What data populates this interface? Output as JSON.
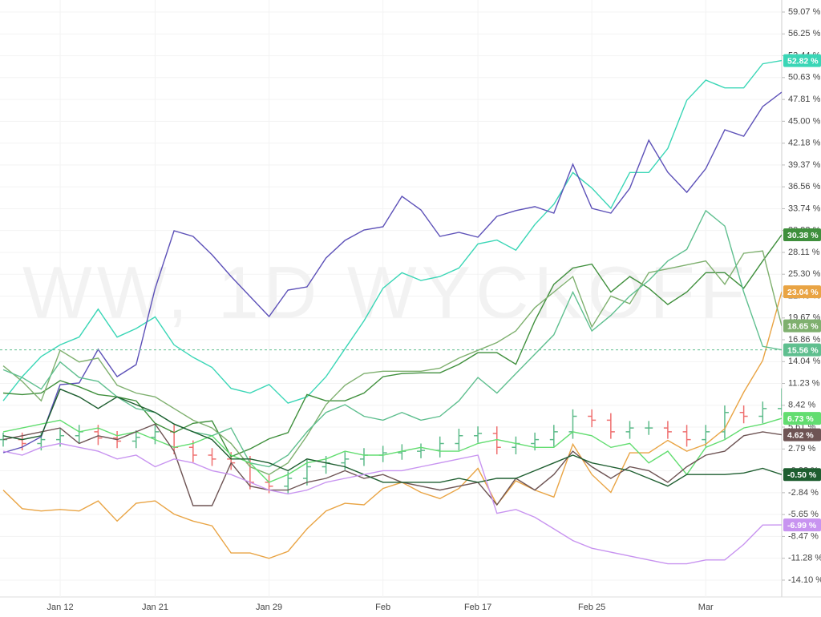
{
  "chart_data": {
    "type": "line",
    "watermark": "WW, 1D WYCKOFF",
    "categories": [
      null,
      null,
      null,
      "Jan 12",
      null,
      null,
      null,
      null,
      "Jan 21",
      null,
      null,
      null,
      null,
      null,
      "Jan 29",
      null,
      null,
      null,
      null,
      null,
      "Feb",
      null,
      null,
      null,
      null,
      "Feb 17",
      null,
      null,
      null,
      null,
      null,
      "Feb 25",
      null,
      null,
      null,
      null,
      null,
      "Mar",
      null,
      null,
      null,
      null
    ],
    "ylim": [
      -16.27,
      60.62
    ],
    "yticks": [
      {
        "value": 59.07,
        "label": "59.07 %"
      },
      {
        "value": 56.25,
        "label": "56.25 %"
      },
      {
        "value": 53.44,
        "label": "53.44 %"
      },
      {
        "value": 50.63,
        "label": "50.63 %"
      },
      {
        "value": 47.81,
        "label": "47.81 %"
      },
      {
        "value": 45.0,
        "label": "45.00 %"
      },
      {
        "value": 42.18,
        "label": "42.18 %"
      },
      {
        "value": 39.37,
        "label": "39.37 %"
      },
      {
        "value": 36.56,
        "label": "36.56 %"
      },
      {
        "value": 33.74,
        "label": "33.74 %"
      },
      {
        "value": 30.93,
        "label": "30.93 %"
      },
      {
        "value": 28.11,
        "label": "28.11 %"
      },
      {
        "value": 25.3,
        "label": "25.30 %"
      },
      {
        "value": 22.49,
        "label": "22.49 %"
      },
      {
        "value": 19.67,
        "label": "19.67 %"
      },
      {
        "value": 16.86,
        "label": "16.86 %"
      },
      {
        "value": 14.04,
        "label": "14.04 %"
      },
      {
        "value": 11.23,
        "label": "11.23 %"
      },
      {
        "value": 8.42,
        "label": "8.42 %"
      },
      {
        "value": 5.61,
        "label": "5.61 %"
      },
      {
        "value": 2.79,
        "label": "2.79 %"
      },
      {
        "value": -0.02,
        "label": "-0.02 %"
      },
      {
        "value": -2.84,
        "label": "-2.84 %"
      },
      {
        "value": -5.65,
        "label": "-5.65 %"
      },
      {
        "value": -8.47,
        "label": "-8.47 %"
      },
      {
        "value": -11.28,
        "label": "-11.28 %"
      },
      {
        "value": -14.1,
        "label": "-14.10 %"
      }
    ],
    "grid": true,
    "series": [
      {
        "color": "#3ad6b6",
        "values": [
          9.0,
          12.1,
          14.7,
          16.2,
          17.2,
          20.8,
          17.2,
          18.3,
          19.8,
          16.2,
          14.6,
          13.3,
          10.6,
          10.0,
          11.1,
          8.7,
          9.5,
          12.1,
          15.7,
          19.3,
          23.5,
          25.5,
          24.5,
          25.0,
          26.1,
          29.2,
          29.7,
          28.4,
          31.7,
          34.3,
          38.4,
          36.4,
          33.8,
          38.4,
          38.4,
          41.5,
          47.7,
          50.3,
          49.3,
          49.3,
          52.4,
          52.82
        ],
        "value_labels": [
          null,
          null,
          null,
          null,
          null,
          null,
          null,
          null,
          null,
          null,
          null,
          null,
          null,
          null,
          null,
          null,
          null,
          null,
          null,
          null,
          null,
          null,
          null,
          null,
          null,
          null,
          null,
          null,
          null,
          null,
          null,
          null,
          null,
          null,
          null,
          null,
          null,
          null,
          null,
          null,
          null,
          "52.82 %"
        ]
      },
      {
        "color": "#5d51b8",
        "values": [
          2.31,
          3.03,
          4.37,
          11.08,
          11.29,
          15.62,
          12.11,
          13.66,
          23.47,
          30.9,
          30.17,
          27.8,
          25.01,
          22.43,
          19.85,
          23.26,
          23.67,
          27.39,
          29.66,
          31.0,
          31.41,
          35.33,
          33.58,
          30.17,
          30.69,
          30.07,
          32.75,
          33.5,
          34.0,
          33.17,
          39.46,
          33.79,
          33.17,
          36.37,
          42.56,
          38.43,
          35.85,
          38.9,
          43.9,
          43.07,
          46.89,
          48.75
        ]
      },
      {
        "color": "#3f8f3c",
        "values": [
          10.0,
          9.8,
          10.0,
          11.6,
          10.8,
          9.8,
          9.5,
          9.0,
          6.1,
          4.9,
          6.1,
          6.4,
          1.8,
          2.8,
          4.1,
          4.9,
          9.8,
          9.0,
          9.0,
          10.0,
          12.1,
          12.5,
          12.6,
          12.6,
          13.7,
          15.2,
          15.2,
          13.7,
          19.3,
          24.0,
          26.1,
          26.6,
          23.0,
          25.0,
          23.5,
          21.4,
          23.0,
          25.5,
          25.5,
          23.5,
          27.0,
          30.38
        ],
        "value_labels": [
          null,
          null,
          null,
          null,
          null,
          null,
          null,
          null,
          null,
          null,
          null,
          null,
          null,
          null,
          null,
          null,
          null,
          null,
          null,
          null,
          null,
          null,
          null,
          null,
          null,
          null,
          null,
          null,
          null,
          null,
          null,
          null,
          null,
          null,
          null,
          null,
          null,
          null,
          null,
          null,
          null,
          "30.38 %"
        ]
      },
      {
        "color": "#e9a444",
        "values": [
          -2.5,
          -4.9,
          -5.2,
          -5.0,
          -5.2,
          -3.9,
          -6.5,
          -4.2,
          -3.9,
          -5.6,
          -6.5,
          -7.1,
          -10.6,
          -10.6,
          -11.3,
          -10.4,
          -7.5,
          -5.2,
          -4.2,
          -4.4,
          -2.3,
          -1.5,
          -2.8,
          -3.6,
          -2.3,
          0.3,
          -4.4,
          -1.3,
          -2.5,
          -3.4,
          3.4,
          -0.5,
          -2.8,
          2.3,
          2.3,
          3.9,
          2.5,
          3.4,
          5.4,
          10.1,
          14.2,
          23.04
        ],
        "value_labels": [
          null,
          null,
          null,
          null,
          null,
          null,
          null,
          null,
          null,
          null,
          null,
          null,
          null,
          null,
          null,
          null,
          null,
          null,
          null,
          null,
          null,
          null,
          null,
          null,
          null,
          null,
          null,
          null,
          null,
          null,
          null,
          null,
          null,
          null,
          null,
          null,
          null,
          null,
          null,
          null,
          null,
          "23.04 %"
        ]
      },
      {
        "color": "#7fb06f",
        "values": [
          13.5,
          11.5,
          9.0,
          15.5,
          14.0,
          14.5,
          11.0,
          10.0,
          9.5,
          8.0,
          6.5,
          5.5,
          3.5,
          0.5,
          -0.5,
          1.0,
          4.5,
          8.5,
          11.0,
          12.5,
          12.8,
          12.8,
          12.8,
          13.2,
          14.5,
          15.5,
          16.5,
          18.0,
          21.0,
          23.0,
          25.0,
          18.5,
          22.5,
          21.5,
          25.5,
          26.0,
          26.5,
          27.0,
          24.0,
          28.0,
          28.3,
          18.65
        ],
        "value_labels": [
          null,
          null,
          null,
          null,
          null,
          null,
          null,
          null,
          null,
          null,
          null,
          null,
          null,
          null,
          null,
          null,
          null,
          null,
          null,
          null,
          null,
          null,
          null,
          null,
          null,
          null,
          null,
          null,
          null,
          null,
          null,
          null,
          null,
          null,
          null,
          null,
          null,
          null,
          null,
          null,
          null,
          "18.65 %"
        ]
      },
      {
        "color": "#5fbf8f",
        "values": [
          13.0,
          12.0,
          10.5,
          14.0,
          12.0,
          11.5,
          9.5,
          8.0,
          7.5,
          6.0,
          5.0,
          4.5,
          5.5,
          1.0,
          0.5,
          2.0,
          5.0,
          7.5,
          8.5,
          7.0,
          6.5,
          7.5,
          6.5,
          7.0,
          9.0,
          12.0,
          10.0,
          12.5,
          15.0,
          17.5,
          23.0,
          18.0,
          20.0,
          22.5,
          24.5,
          27.0,
          28.5,
          33.5,
          31.5,
          23.0,
          16.0,
          15.56
        ],
        "value_labels": [
          null,
          null,
          null,
          null,
          null,
          null,
          null,
          null,
          null,
          null,
          null,
          null,
          null,
          null,
          null,
          null,
          null,
          null,
          null,
          null,
          null,
          null,
          null,
          null,
          null,
          null,
          null,
          null,
          null,
          null,
          null,
          null,
          null,
          null,
          null,
          null,
          null,
          null,
          null,
          null,
          null,
          "15.56 %"
        ]
      },
      {
        "color": "#62dd70",
        "values": [
          5.0,
          5.5,
          6.0,
          6.5,
          5.0,
          5.5,
          4.5,
          5.0,
          4.0,
          3.0,
          3.5,
          4.5,
          2.0,
          1.0,
          -1.5,
          -0.5,
          1.0,
          1.5,
          2.5,
          2.0,
          2.0,
          2.5,
          3.0,
          2.5,
          2.5,
          3.5,
          4.0,
          3.5,
          3.0,
          3.0,
          5.0,
          4.5,
          3.0,
          3.5,
          1.0,
          2.5,
          -0.5,
          3.0,
          4.0,
          5.5,
          6.0,
          6.73
        ],
        "value_labels": [
          null,
          null,
          null,
          null,
          null,
          null,
          null,
          null,
          null,
          null,
          null,
          null,
          null,
          null,
          null,
          null,
          null,
          null,
          null,
          null,
          null,
          null,
          null,
          null,
          null,
          null,
          null,
          null,
          null,
          null,
          null,
          null,
          null,
          null,
          null,
          null,
          null,
          null,
          null,
          null,
          null,
          "6.73 %"
        ]
      },
      {
        "color": "#6e5454",
        "values": [
          4.0,
          4.5,
          5.0,
          5.5,
          3.5,
          4.5,
          4.0,
          5.0,
          6.0,
          2.5,
          -4.5,
          -4.5,
          1.0,
          -2.0,
          -2.5,
          -2.5,
          -1.5,
          -1.0,
          0.0,
          -1.0,
          -0.5,
          -1.5,
          -2.0,
          -2.5,
          -2.0,
          -1.5,
          -4.4,
          -1.0,
          -2.5,
          -0.5,
          2.5,
          0.5,
          -1.0,
          0.5,
          0.0,
          -1.5,
          0.5,
          2.0,
          2.5,
          4.5,
          5.0,
          4.62
        ],
        "value_labels": [
          null,
          null,
          null,
          null,
          null,
          null,
          null,
          null,
          null,
          null,
          null,
          null,
          null,
          null,
          null,
          null,
          null,
          null,
          null,
          null,
          null,
          null,
          null,
          null,
          null,
          null,
          null,
          null,
          null,
          null,
          null,
          null,
          null,
          null,
          null,
          null,
          null,
          null,
          null,
          null,
          null,
          "4.62 %"
        ]
      },
      {
        "color": "#1e5e30",
        "values": [
          4.5,
          4.0,
          4.5,
          10.5,
          9.5,
          8.0,
          9.5,
          8.5,
          7.5,
          6.0,
          5.0,
          4.0,
          1.5,
          1.5,
          1.0,
          0.0,
          1.5,
          1.0,
          0.5,
          -0.5,
          -1.5,
          -1.5,
          -1.5,
          -1.5,
          -1.0,
          -1.5,
          -1.0,
          -1.0,
          0.0,
          1.0,
          2.0,
          1.0,
          0.5,
          0.0,
          -1.0,
          -2.0,
          -0.5,
          -0.5,
          -0.5,
          -0.3,
          0.3,
          -0.5
        ],
        "value_labels": [
          null,
          null,
          null,
          null,
          null,
          null,
          null,
          null,
          null,
          null,
          null,
          null,
          null,
          null,
          null,
          null,
          null,
          null,
          null,
          null,
          null,
          null,
          null,
          null,
          null,
          null,
          null,
          null,
          null,
          null,
          null,
          null,
          null,
          null,
          null,
          null,
          null,
          null,
          null,
          null,
          null,
          "-0.50 %"
        ]
      },
      {
        "color": "#c894f0",
        "values": [
          2.5,
          2.0,
          3.0,
          3.5,
          3.0,
          2.5,
          1.5,
          2.0,
          0.5,
          1.5,
          1.0,
          0.0,
          -0.5,
          -1.5,
          -2.5,
          -3.0,
          -2.5,
          -1.5,
          -1.0,
          -0.5,
          0.0,
          0.0,
          0.5,
          1.0,
          1.5,
          2.0,
          -5.5,
          -5.0,
          -6.0,
          -7.5,
          -9.0,
          -10.0,
          -10.5,
          -11.0,
          -11.5,
          -12.0,
          -12.0,
          -11.5,
          -11.5,
          -9.5,
          -7.0,
          -6.99
        ],
        "value_labels": [
          null,
          null,
          null,
          null,
          null,
          null,
          null,
          null,
          null,
          null,
          null,
          null,
          null,
          null,
          null,
          null,
          null,
          null,
          null,
          null,
          null,
          null,
          null,
          null,
          null,
          null,
          null,
          null,
          null,
          null,
          null,
          null,
          null,
          null,
          null,
          null,
          null,
          null,
          null,
          null,
          null,
          "-6.99 %"
        ]
      }
    ],
    "bars": {
      "up_color": "#5dbb8a",
      "down_color": "#ef7070",
      "values": [
        4.0,
        3.5,
        4.0,
        4.5,
        5.0,
        4.2,
        3.8,
        4.3,
        5.0,
        3.0,
        2.0,
        1.5,
        1.0,
        -1.5,
        -2.0,
        -1.0,
        0.5,
        1.0,
        1.5,
        2.0,
        2.3,
        2.5,
        2.6,
        3.5,
        4.5,
        4.8,
        3.0,
        3.5,
        4.0,
        5.0,
        7.0,
        6.5,
        5.0,
        5.5,
        5.5,
        5.0,
        4.0,
        5.0,
        7.5,
        7.0,
        8.0,
        9.7
      ]
    }
  }
}
